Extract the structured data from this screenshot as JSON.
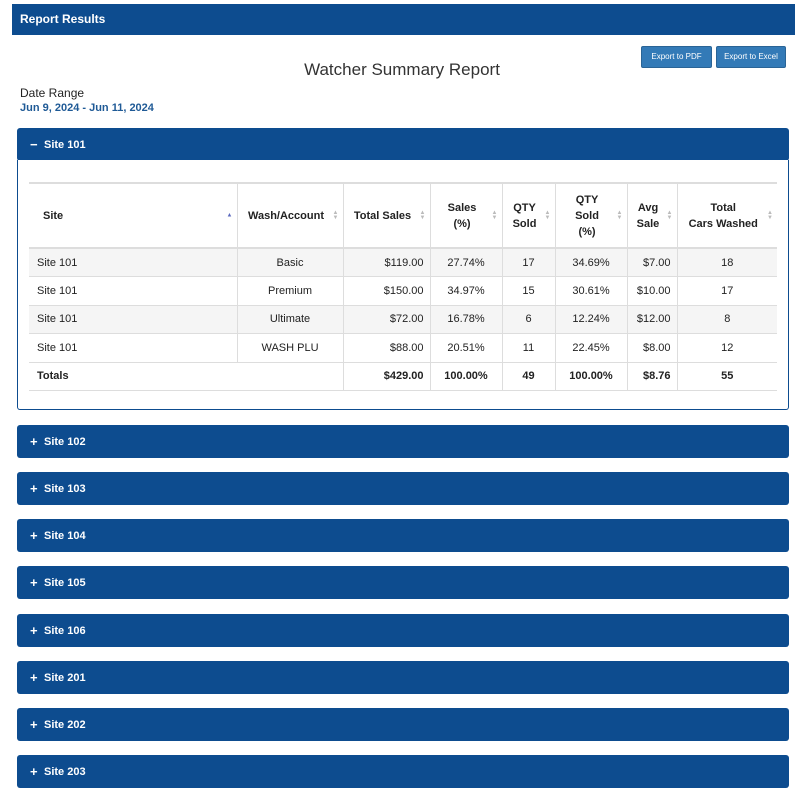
{
  "header": {
    "title": "Report Results"
  },
  "toolbar": {
    "export_pdf": "Export to PDF",
    "export_excel": "Export to Excel"
  },
  "report": {
    "title": "Watcher Summary Report",
    "date_range_label": "Date Range",
    "date_range_value": "Jun 9, 2024 - Jun 11, 2024"
  },
  "panels": [
    {
      "label": "Site 101",
      "icon": "minus-icon",
      "symbol": "−",
      "expanded": true
    },
    {
      "label": "Site 102",
      "icon": "plus-icon",
      "symbol": "+"
    },
    {
      "label": "Site 103",
      "icon": "plus-icon",
      "symbol": "+"
    },
    {
      "label": "Site 104",
      "icon": "plus-icon",
      "symbol": "+"
    },
    {
      "label": "Site 105",
      "icon": "plus-icon",
      "symbol": "+"
    },
    {
      "label": "Site 106",
      "icon": "plus-icon",
      "symbol": "+"
    },
    {
      "label": "Site 201",
      "icon": "plus-icon",
      "symbol": "+"
    },
    {
      "label": "Site 202",
      "icon": "plus-icon",
      "symbol": "+"
    },
    {
      "label": "Site 203",
      "icon": "plus-icon",
      "symbol": "+"
    }
  ],
  "table": {
    "headers": [
      "Site",
      "Wash/Account",
      "Total Sales",
      "Sales\n(%)",
      "QTY\nSold",
      "QTY\nSold\n(%)",
      "Avg\nSale",
      "Total\nCars Washed"
    ],
    "rows": [
      [
        "Site 101",
        "Basic",
        "$119.00",
        "27.74%",
        "17",
        "34.69%",
        "$7.00",
        "18"
      ],
      [
        "Site 101",
        "Premium",
        "$150.00",
        "34.97%",
        "15",
        "30.61%",
        "$10.00",
        "17"
      ],
      [
        "Site 101",
        "Ultimate",
        "$72.00",
        "16.78%",
        "6",
        "12.24%",
        "$12.00",
        "8"
      ],
      [
        "Site 101",
        "WASH PLU",
        "$88.00",
        "20.51%",
        "11",
        "22.45%",
        "$8.00",
        "12"
      ]
    ],
    "totals": [
      "Totals",
      "$429.00",
      "100.00%",
      "49",
      "100.00%",
      "$8.76",
      "55"
    ]
  },
  "colors": {
    "panel_header": "#0d4c8f",
    "button": "#337ab7",
    "date_value": "#1f5a96"
  }
}
